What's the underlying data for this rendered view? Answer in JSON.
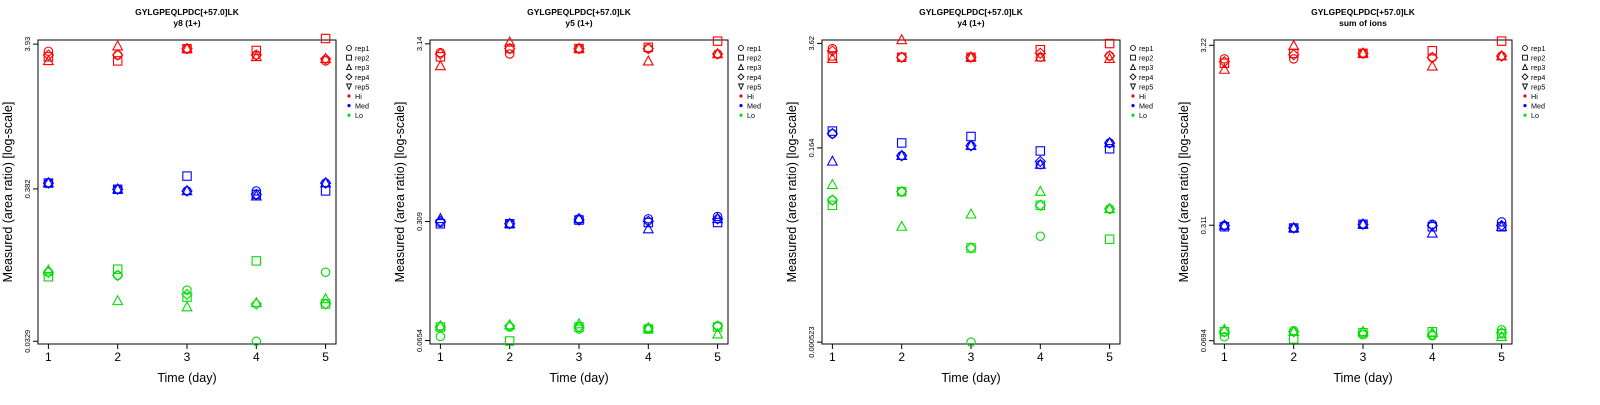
{
  "figure": {
    "peptide": "GYLGPEQLPDC[+57.0]LK"
  },
  "colors": {
    "Hi": "#ff0000",
    "Med": "#0000ff",
    "Lo": "#00dd00",
    "axis": "#000000"
  },
  "legend_entries": [
    {
      "label": "rep1",
      "kind": "shape",
      "marker": "circle"
    },
    {
      "label": "rep2",
      "kind": "shape",
      "marker": "square"
    },
    {
      "label": "rep3",
      "kind": "shape",
      "marker": "triangle-up"
    },
    {
      "label": "rep4",
      "kind": "shape",
      "marker": "diamond"
    },
    {
      "label": "rep5",
      "kind": "shape",
      "marker": "triangle-down"
    },
    {
      "label": "Hi",
      "kind": "color",
      "color_key": "Hi"
    },
    {
      "label": "Med",
      "kind": "color",
      "color_key": "Med"
    },
    {
      "label": "Lo",
      "kind": "color",
      "color_key": "Lo"
    }
  ],
  "chart_data": [
    {
      "type": "scatter",
      "title": "GYLGPEQLPDC[+57.0]LK",
      "subtitle": "y8 (1+)",
      "xlabel": "Time (day)",
      "ylabel": "Measured (area ratio) [log-scale]",
      "x": [
        1,
        2,
        3,
        4,
        5
      ],
      "xlim": [
        0.85,
        5.15
      ],
      "yscale": "log",
      "ylim": [
        0.0315,
        4.2
      ],
      "y_ticks": [
        {
          "value": 3.93,
          "label": "3.93"
        },
        {
          "value": 0.382,
          "label": "0.382"
        },
        {
          "value": 0.0329,
          "label": "0.0329"
        }
      ],
      "series": [
        {
          "name": "Hi rep1",
          "group": "Hi",
          "marker": "circle",
          "values": [
            3.5,
            3.3,
            3.65,
            3.3,
            3.0
          ]
        },
        {
          "name": "Hi rep2",
          "group": "Hi",
          "marker": "square",
          "values": [
            3.2,
            3.0,
            3.65,
            3.55,
            4.3
          ]
        },
        {
          "name": "Hi rep3",
          "group": "Hi",
          "marker": "triangle-up",
          "values": [
            3.0,
            3.8,
            3.65,
            3.2,
            3.1
          ]
        },
        {
          "name": "Hi rep4",
          "group": "Hi",
          "marker": "diamond",
          "values": [
            3.3,
            3.3,
            3.65,
            3.3,
            3.1
          ]
        },
        {
          "name": "Med rep1",
          "group": "Med",
          "marker": "circle",
          "values": [
            0.42,
            0.38,
            0.37,
            0.37,
            0.42
          ]
        },
        {
          "name": "Med rep2",
          "group": "Med",
          "marker": "square",
          "values": [
            0.42,
            0.38,
            0.47,
            0.35,
            0.37
          ]
        },
        {
          "name": "Med rep3",
          "group": "Med",
          "marker": "triangle-up",
          "values": [
            0.42,
            0.38,
            0.37,
            0.34,
            0.42
          ]
        },
        {
          "name": "Med rep4",
          "group": "Med",
          "marker": "diamond",
          "values": [
            0.42,
            0.38,
            0.37,
            0.35,
            0.42
          ]
        },
        {
          "name": "Lo rep1",
          "group": "Lo",
          "marker": "circle",
          "values": [
            0.1,
            0.095,
            0.075,
            0.0329,
            0.1
          ]
        },
        {
          "name": "Lo rep2",
          "group": "Lo",
          "marker": "square",
          "values": [
            0.093,
            0.105,
            0.067,
            0.12,
            0.06
          ]
        },
        {
          "name": "Lo rep3",
          "group": "Lo",
          "marker": "triangle-up",
          "values": [
            0.103,
            0.063,
            0.057,
            0.061,
            0.065
          ]
        },
        {
          "name": "Lo rep4",
          "group": "Lo",
          "marker": "diamond",
          "values": [
            0.1,
            0.095,
            0.07,
            0.06,
            0.06
          ]
        }
      ]
    },
    {
      "type": "scatter",
      "title": "GYLGPEQLPDC[+57.0]LK",
      "subtitle": "y5 (1+)",
      "xlabel": "Time (day)",
      "ylabel": "Measured (area ratio) [log-scale]",
      "x": [
        1,
        2,
        3,
        4,
        5
      ],
      "xlim": [
        0.85,
        5.15
      ],
      "yscale": "log",
      "ylim": [
        0.0625,
        3.3
      ],
      "y_ticks": [
        {
          "value": 3.14,
          "label": "3.14"
        },
        {
          "value": 0.309,
          "label": "0.309"
        },
        {
          "value": 0.0654,
          "label": "0.0654"
        }
      ],
      "series": [
        {
          "name": "Hi rep1",
          "group": "Hi",
          "marker": "circle",
          "values": [
            2.8,
            2.75,
            2.95,
            2.95,
            2.75
          ]
        },
        {
          "name": "Hi rep2",
          "group": "Hi",
          "marker": "square",
          "values": [
            2.65,
            2.95,
            2.95,
            3.0,
            3.25
          ]
        },
        {
          "name": "Hi rep3",
          "group": "Hi",
          "marker": "triangle-up",
          "values": [
            2.35,
            3.2,
            2.95,
            2.5,
            2.75
          ]
        },
        {
          "name": "Hi rep4",
          "group": "Hi",
          "marker": "diamond",
          "values": [
            2.75,
            2.95,
            2.95,
            2.95,
            2.75
          ]
        },
        {
          "name": "Med rep1",
          "group": "Med",
          "marker": "circle",
          "values": [
            0.305,
            0.3,
            0.32,
            0.32,
            0.33
          ]
        },
        {
          "name": "Med rep2",
          "group": "Med",
          "marker": "square",
          "values": [
            0.3,
            0.3,
            0.315,
            0.305,
            0.305
          ]
        },
        {
          "name": "Med rep3",
          "group": "Med",
          "marker": "triangle-up",
          "values": [
            0.32,
            0.3,
            0.32,
            0.28,
            0.32
          ]
        },
        {
          "name": "Med rep4",
          "group": "Med",
          "marker": "diamond",
          "values": [
            0.31,
            0.3,
            0.315,
            0.31,
            0.32
          ]
        },
        {
          "name": "Lo rep1",
          "group": "Lo",
          "marker": "circle",
          "values": [
            0.069,
            0.078,
            0.076,
            0.076,
            0.079
          ]
        },
        {
          "name": "Lo rep2",
          "group": "Lo",
          "marker": "square",
          "values": [
            0.078,
            0.065,
            0.078,
            0.076,
            0.078
          ]
        },
        {
          "name": "Lo rep3",
          "group": "Lo",
          "marker": "triangle-up",
          "values": [
            0.079,
            0.08,
            0.081,
            0.077,
            0.071
          ]
        },
        {
          "name": "Lo rep4",
          "group": "Lo",
          "marker": "diamond",
          "values": [
            0.078,
            0.079,
            0.078,
            0.077,
            0.079
          ]
        }
      ]
    },
    {
      "type": "scatter",
      "title": "GYLGPEQLPDC[+57.0]LK",
      "subtitle": "y4 (1+)",
      "xlabel": "Time (day)",
      "ylabel": "Measured (area ratio) [log-scale]",
      "x": [
        1,
        2,
        3,
        4,
        5
      ],
      "xlim": [
        0.85,
        5.15
      ],
      "yscale": "log",
      "ylim": [
        0.000495,
        4.0
      ],
      "y_ticks": [
        {
          "value": 3.62,
          "label": "3.62"
        },
        {
          "value": 0.164,
          "label": "0.164"
        },
        {
          "value": 0.000523,
          "label": "0.000523"
        }
      ],
      "series": [
        {
          "name": "Hi rep1",
          "group": "Hi",
          "marker": "circle",
          "values": [
            3.1,
            2.4,
            2.4,
            2.4,
            2.5
          ]
        },
        {
          "name": "Hi rep2",
          "group": "Hi",
          "marker": "square",
          "values": [
            2.5,
            2.4,
            2.4,
            3.0,
            3.6
          ]
        },
        {
          "name": "Hi rep3",
          "group": "Hi",
          "marker": "triangle-up",
          "values": [
            2.3,
            4.0,
            2.4,
            2.4,
            2.3
          ]
        },
        {
          "name": "Hi rep4",
          "group": "Hi",
          "marker": "diamond",
          "values": [
            2.9,
            2.4,
            2.4,
            2.7,
            2.5
          ]
        },
        {
          "name": "Med rep1",
          "group": "Med",
          "marker": "circle",
          "values": [
            0.25,
            0.13,
            0.175,
            0.1,
            0.19
          ]
        },
        {
          "name": "Med rep2",
          "group": "Med",
          "marker": "square",
          "values": [
            0.27,
            0.19,
            0.23,
            0.15,
            0.16
          ]
        },
        {
          "name": "Med rep3",
          "group": "Med",
          "marker": "triangle-up",
          "values": [
            0.11,
            0.13,
            0.175,
            0.1,
            0.19
          ]
        },
        {
          "name": "Med rep4",
          "group": "Med",
          "marker": "diamond",
          "values": [
            0.25,
            0.13,
            0.175,
            0.11,
            0.19
          ]
        },
        {
          "name": "Lo rep1",
          "group": "Lo",
          "marker": "circle",
          "values": [
            0.035,
            0.045,
            0.000523,
            0.012,
            0.027
          ]
        },
        {
          "name": "Lo rep2",
          "group": "Lo",
          "marker": "square",
          "values": [
            0.03,
            0.045,
            0.0085,
            0.03,
            0.011
          ]
        },
        {
          "name": "Lo rep3",
          "group": "Lo",
          "marker": "triangle-up",
          "values": [
            0.055,
            0.016,
            0.023,
            0.045,
            0.027
          ]
        },
        {
          "name": "Lo rep4",
          "group": "Lo",
          "marker": "diamond",
          "values": [
            0.035,
            0.045,
            0.0085,
            0.03,
            0.027
          ]
        }
      ]
    },
    {
      "type": "scatter",
      "title": "GYLGPEQLPDC[+57.0]LK",
      "subtitle": "sum of ions",
      "xlabel": "Time (day)",
      "ylabel": "Measured (area ratio) [log-scale]",
      "x": [
        1,
        2,
        3,
        4,
        5
      ],
      "xlim": [
        0.85,
        5.15
      ],
      "yscale": "log",
      "ylim": [
        0.0665,
        3.45
      ],
      "y_ticks": [
        {
          "value": 3.22,
          "label": "3.22"
        },
        {
          "value": 0.311,
          "label": "0.311"
        },
        {
          "value": 0.0694,
          "label": "0.0694"
        }
      ],
      "series": [
        {
          "name": "Hi rep1",
          "group": "Hi",
          "marker": "circle",
          "values": [
            2.7,
            2.7,
            2.9,
            2.75,
            2.8
          ]
        },
        {
          "name": "Hi rep2",
          "group": "Hi",
          "marker": "square",
          "values": [
            2.55,
            2.9,
            2.9,
            3.0,
            3.4
          ]
        },
        {
          "name": "Hi rep3",
          "group": "Hi",
          "marker": "triangle-up",
          "values": [
            2.35,
            3.2,
            2.9,
            2.45,
            2.8
          ]
        },
        {
          "name": "Hi rep4",
          "group": "Hi",
          "marker": "diamond",
          "values": [
            2.6,
            2.85,
            2.9,
            2.75,
            2.8
          ]
        },
        {
          "name": "Med rep1",
          "group": "Med",
          "marker": "circle",
          "values": [
            0.31,
            0.3,
            0.315,
            0.315,
            0.325
          ]
        },
        {
          "name": "Med rep2",
          "group": "Med",
          "marker": "square",
          "values": [
            0.305,
            0.3,
            0.315,
            0.305,
            0.305
          ]
        },
        {
          "name": "Med rep3",
          "group": "Med",
          "marker": "triangle-up",
          "values": [
            0.31,
            0.3,
            0.315,
            0.28,
            0.305
          ]
        },
        {
          "name": "Med rep4",
          "group": "Med",
          "marker": "diamond",
          "values": [
            0.31,
            0.3,
            0.315,
            0.31,
            0.31
          ]
        },
        {
          "name": "Lo rep1",
          "group": "Lo",
          "marker": "circle",
          "values": [
            0.073,
            0.079,
            0.075,
            0.074,
            0.08
          ]
        },
        {
          "name": "Lo rep2",
          "group": "Lo",
          "marker": "square",
          "values": [
            0.078,
            0.071,
            0.077,
            0.078,
            0.076
          ]
        },
        {
          "name": "Lo rep3",
          "group": "Lo",
          "marker": "triangle-up",
          "values": [
            0.08,
            0.078,
            0.078,
            0.077,
            0.073
          ]
        },
        {
          "name": "Lo rep4",
          "group": "Lo",
          "marker": "diamond",
          "values": [
            0.078,
            0.078,
            0.077,
            0.075,
            0.077
          ]
        }
      ]
    }
  ]
}
